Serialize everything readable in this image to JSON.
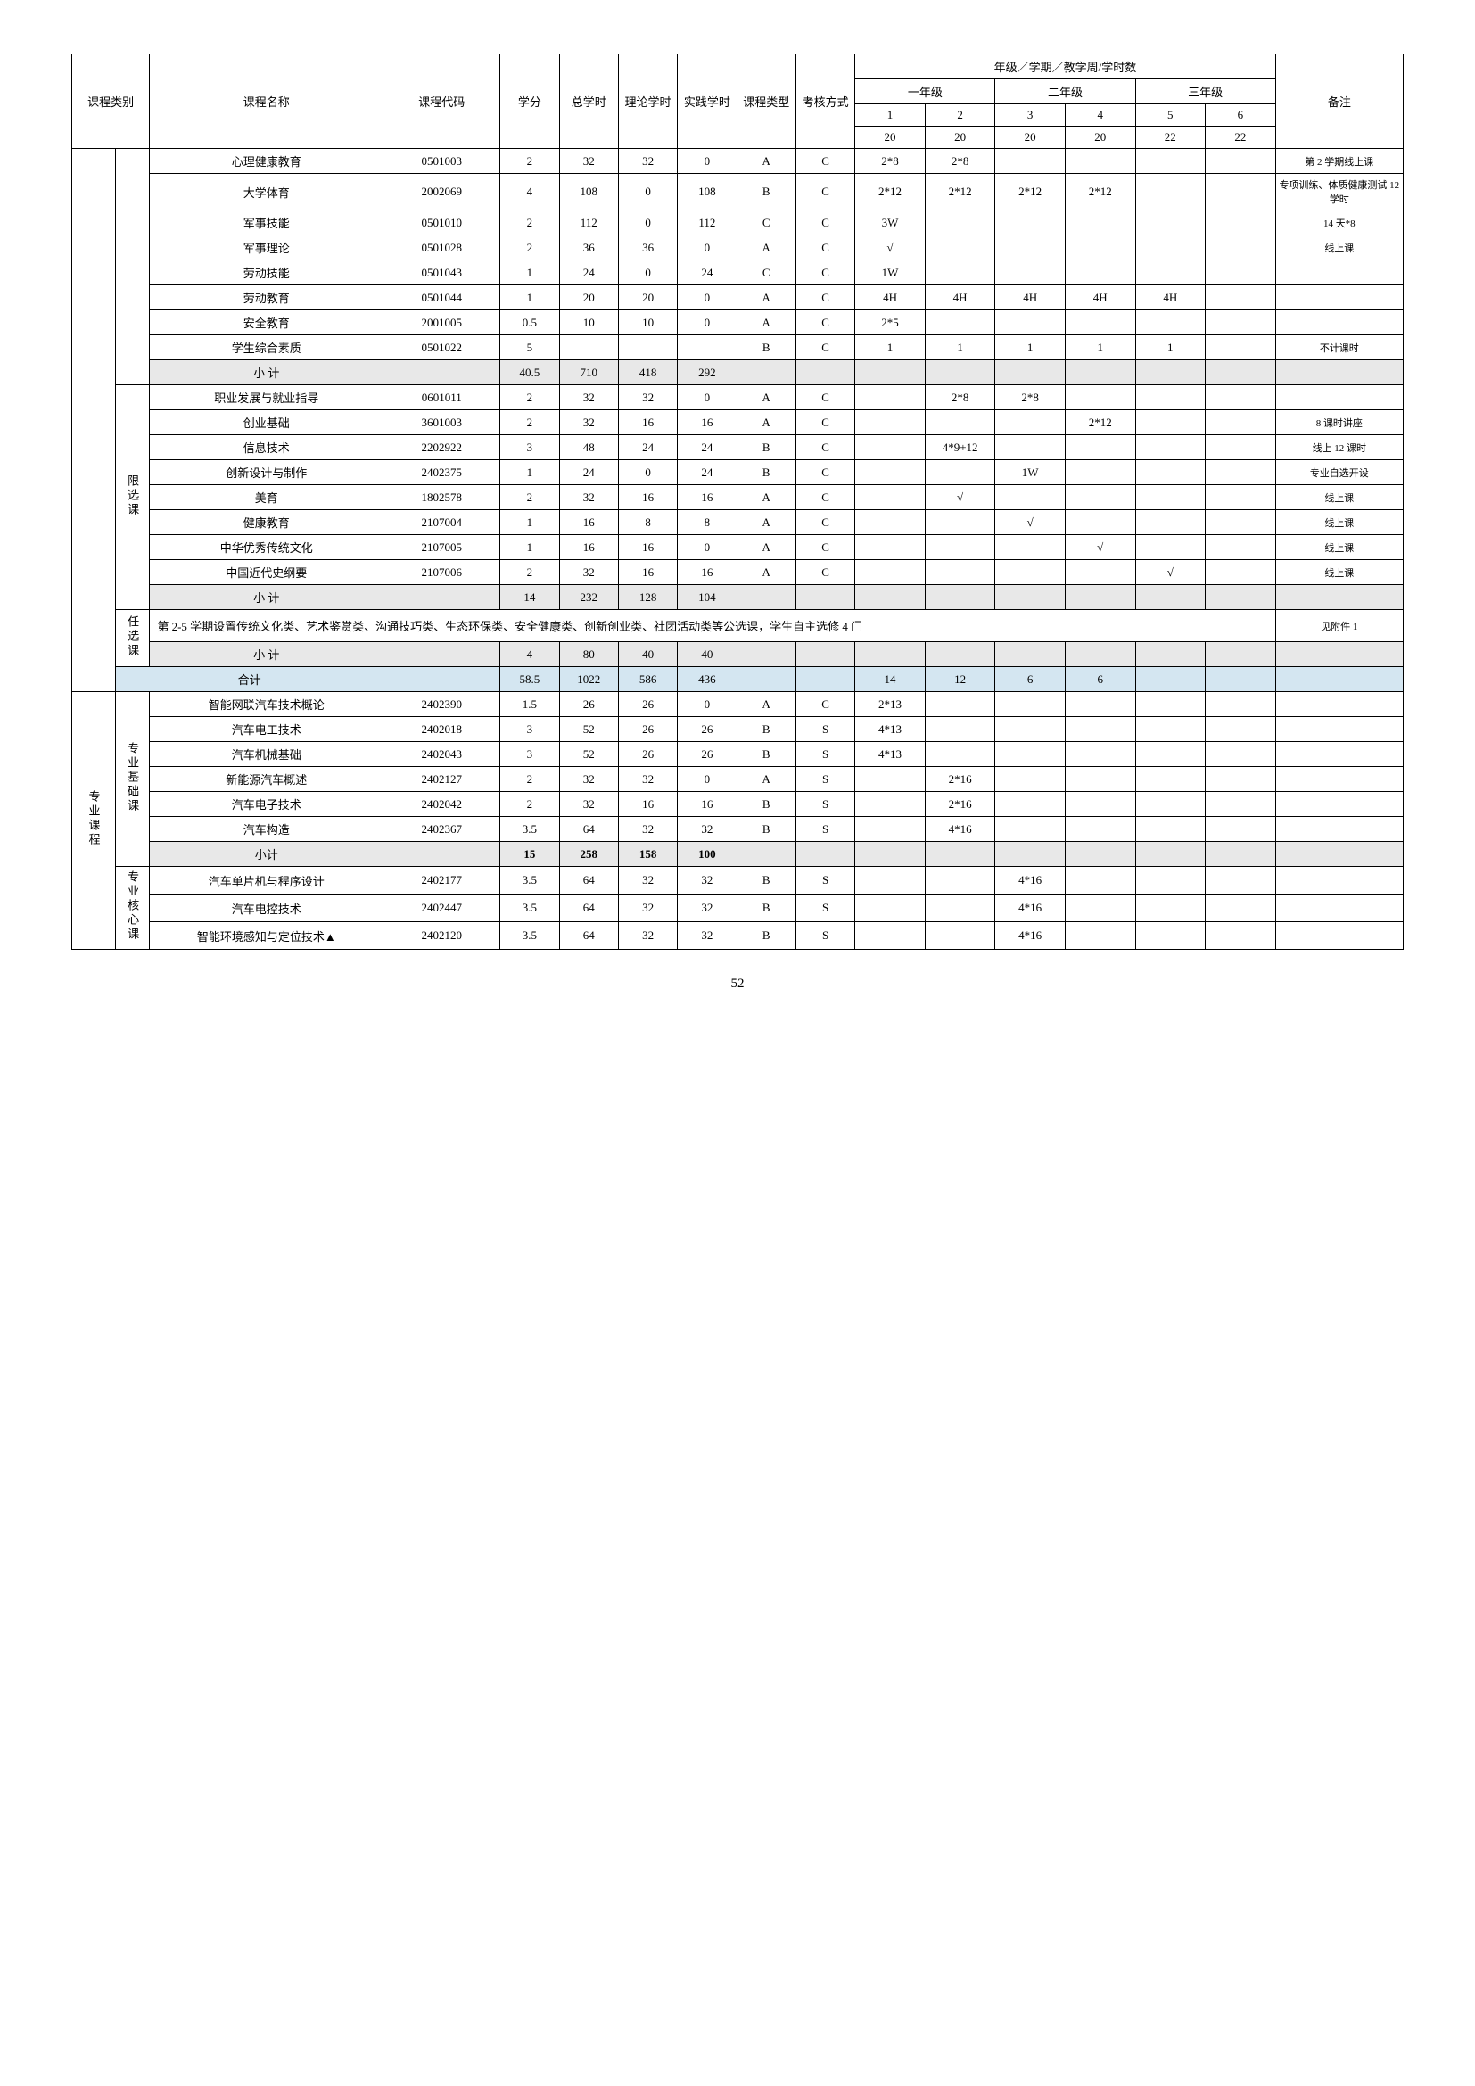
{
  "header": {
    "courseCategory": "课程类别",
    "courseName": "课程名称",
    "courseCode": "课程代码",
    "credits": "学分",
    "totalHours": "总学时",
    "theoryHours": "理论学时",
    "practiceHours": "实践学时",
    "courseType": "课程类型",
    "assessment": "考核方式",
    "yearSemWeek": "年级／学期／教学周/学时数",
    "year1": "一年级",
    "year2": "二年级",
    "year3": "三年级",
    "sem1": "1",
    "sem2": "2",
    "sem3": "3",
    "sem4": "4",
    "sem5": "5",
    "sem6": "6",
    "weeks1": "20",
    "weeks2": "20",
    "weeks3": "20",
    "weeks4": "20",
    "weeks5": "22",
    "weeks6": "22",
    "notes": "备注"
  },
  "sections": {
    "blank1": "",
    "limitedElective": "限选课",
    "optionalElective": "任选课",
    "majorCourse": "专业课程",
    "majorBasic": "专业基础课",
    "majorCore": "专业核心课"
  },
  "labels": {
    "subtotal": "小  计",
    "subtotalShort": "小计",
    "total": "合计"
  },
  "rows": {
    "r1": {
      "name": "心理健康教育",
      "code": "0501003",
      "credits": "2",
      "total": "32",
      "theory": "32",
      "practice": "0",
      "ctype": "A",
      "assess": "C",
      "s1": "2*8",
      "s2": "2*8",
      "s3": "",
      "s4": "",
      "s5": "",
      "s6": "",
      "note": "第 2 学期线上课"
    },
    "r2": {
      "name": "大学体育",
      "code": "2002069",
      "credits": "4",
      "total": "108",
      "theory": "0",
      "practice": "108",
      "ctype": "B",
      "assess": "C",
      "s1": "2*12",
      "s2": "2*12",
      "s3": "2*12",
      "s4": "2*12",
      "s5": "",
      "s6": "",
      "note": "专项训练、体质健康测试 12 学时"
    },
    "r3": {
      "name": "军事技能",
      "code": "0501010",
      "credits": "2",
      "total": "112",
      "theory": "0",
      "practice": "112",
      "ctype": "C",
      "assess": "C",
      "s1": "3W",
      "s2": "",
      "s3": "",
      "s4": "",
      "s5": "",
      "s6": "",
      "note": "14 天*8"
    },
    "r4": {
      "name": "军事理论",
      "code": "0501028",
      "credits": "2",
      "total": "36",
      "theory": "36",
      "practice": "0",
      "ctype": "A",
      "assess": "C",
      "s1": "√",
      "s2": "",
      "s3": "",
      "s4": "",
      "s5": "",
      "s6": "",
      "note": "线上课"
    },
    "r5": {
      "name": "劳动技能",
      "code": "0501043",
      "credits": "1",
      "total": "24",
      "theory": "0",
      "practice": "24",
      "ctype": "C",
      "assess": "C",
      "s1": "1W",
      "s2": "",
      "s3": "",
      "s4": "",
      "s5": "",
      "s6": "",
      "note": ""
    },
    "r6": {
      "name": "劳动教育",
      "code": "0501044",
      "credits": "1",
      "total": "20",
      "theory": "20",
      "practice": "0",
      "ctype": "A",
      "assess": "C",
      "s1": "4H",
      "s2": "4H",
      "s3": "4H",
      "s4": "4H",
      "s5": "4H",
      "s6": "",
      "note": ""
    },
    "r7": {
      "name": "安全教育",
      "code": "2001005",
      "credits": "0.5",
      "total": "10",
      "theory": "10",
      "practice": "0",
      "ctype": "A",
      "assess": "C",
      "s1": "2*5",
      "s2": "",
      "s3": "",
      "s4": "",
      "s5": "",
      "s6": "",
      "note": ""
    },
    "r8": {
      "name": "学生综合素质",
      "code": "0501022",
      "credits": "5",
      "total": "",
      "theory": "",
      "practice": "",
      "ctype": "B",
      "assess": "C",
      "s1": "1",
      "s2": "1",
      "s3": "1",
      "s4": "1",
      "s5": "1",
      "s6": "",
      "note": "不计课时"
    },
    "sub1": {
      "credits": "40.5",
      "total": "710",
      "theory": "418",
      "practice": "292"
    },
    "r9": {
      "name": "职业发展与就业指导",
      "code": "0601011",
      "credits": "2",
      "total": "32",
      "theory": "32",
      "practice": "0",
      "ctype": "A",
      "assess": "C",
      "s1": "",
      "s2": "2*8",
      "s3": "2*8",
      "s4": "",
      "s5": "",
      "s6": "",
      "note": ""
    },
    "r10": {
      "name": "创业基础",
      "code": "3601003",
      "credits": "2",
      "total": "32",
      "theory": "16",
      "practice": "16",
      "ctype": "A",
      "assess": "C",
      "s1": "",
      "s2": "",
      "s3": "",
      "s4": "2*12",
      "s5": "",
      "s6": "",
      "note": "8 课时讲座"
    },
    "r11": {
      "name": "信息技术",
      "code": "2202922",
      "credits": "3",
      "total": "48",
      "theory": "24",
      "practice": "24",
      "ctype": "B",
      "assess": "C",
      "s1": "",
      "s2": "4*9+12",
      "s3": "",
      "s4": "",
      "s5": "",
      "s6": "",
      "note": "线上 12 课时"
    },
    "r12": {
      "name": "创新设计与制作",
      "code": "2402375",
      "credits": "1",
      "total": "24",
      "theory": "0",
      "practice": "24",
      "ctype": "B",
      "assess": "C",
      "s1": "",
      "s2": "",
      "s3": "1W",
      "s4": "",
      "s5": "",
      "s6": "",
      "note": "专业自选开设"
    },
    "r13": {
      "name": "美育",
      "code": "1802578",
      "credits": "2",
      "total": "32",
      "theory": "16",
      "practice": "16",
      "ctype": "A",
      "assess": "C",
      "s1": "",
      "s2": "√",
      "s3": "",
      "s4": "",
      "s5": "",
      "s6": "",
      "note": "线上课"
    },
    "r14": {
      "name": "健康教育",
      "code": "2107004",
      "credits": "1",
      "total": "16",
      "theory": "8",
      "practice": "8",
      "ctype": "A",
      "assess": "C",
      "s1": "",
      "s2": "",
      "s3": "√",
      "s4": "",
      "s5": "",
      "s6": "",
      "note": "线上课"
    },
    "r15": {
      "name": "中华优秀传统文化",
      "code": "2107005",
      "credits": "1",
      "total": "16",
      "theory": "16",
      "practice": "0",
      "ctype": "A",
      "assess": "C",
      "s1": "",
      "s2": "",
      "s3": "",
      "s4": "√",
      "s5": "",
      "s6": "",
      "note": "线上课"
    },
    "r16": {
      "name": "中国近代史纲要",
      "code": "2107006",
      "credits": "2",
      "total": "32",
      "theory": "16",
      "practice": "16",
      "ctype": "A",
      "assess": "C",
      "s1": "",
      "s2": "",
      "s3": "",
      "s4": "",
      "s5": "√",
      "s6": "",
      "note": "线上课"
    },
    "sub2": {
      "credits": "14",
      "total": "232",
      "theory": "128",
      "practice": "104"
    },
    "optText": "第 2-5 学期设置传统文化类、艺术鉴赏类、沟通技巧类、生态环保类、安全健康类、创新创业类、社团活动类等公选课，学生自主选修 4 门",
    "optNote": "见附件 1",
    "sub3": {
      "credits": "4",
      "total": "80",
      "theory": "40",
      "practice": "40"
    },
    "grandTotal": {
      "credits": "58.5",
      "total": "1022",
      "theory": "586",
      "practice": "436",
      "s1": "14",
      "s2": "12",
      "s3": "6",
      "s4": "6"
    },
    "r17": {
      "name": "智能网联汽车技术概论",
      "code": "2402390",
      "credits": "1.5",
      "total": "26",
      "theory": "26",
      "practice": "0",
      "ctype": "A",
      "assess": "C",
      "s1": "2*13",
      "s2": "",
      "s3": "",
      "s4": "",
      "s5": "",
      "s6": "",
      "note": ""
    },
    "r18": {
      "name": "汽车电工技术",
      "code": "2402018",
      "credits": "3",
      "total": "52",
      "theory": "26",
      "practice": "26",
      "ctype": "B",
      "assess": "S",
      "s1": "4*13",
      "s2": "",
      "s3": "",
      "s4": "",
      "s5": "",
      "s6": "",
      "note": ""
    },
    "r19": {
      "name": "汽车机械基础",
      "code": "2402043",
      "credits": "3",
      "total": "52",
      "theory": "26",
      "practice": "26",
      "ctype": "B",
      "assess": "S",
      "s1": "4*13",
      "s2": "",
      "s3": "",
      "s4": "",
      "s5": "",
      "s6": "",
      "note": ""
    },
    "r20": {
      "name": "新能源汽车概述",
      "code": "2402127",
      "credits": "2",
      "total": "32",
      "theory": "32",
      "practice": "0",
      "ctype": "A",
      "assess": "S",
      "s1": "",
      "s2": "2*16",
      "s3": "",
      "s4": "",
      "s5": "",
      "s6": "",
      "note": ""
    },
    "r21": {
      "name": "汽车电子技术",
      "code": "2402042",
      "credits": "2",
      "total": "32",
      "theory": "16",
      "practice": "16",
      "ctype": "B",
      "assess": "S",
      "s1": "",
      "s2": "2*16",
      "s3": "",
      "s4": "",
      "s5": "",
      "s6": "",
      "note": ""
    },
    "r22": {
      "name": "汽车构造",
      "code": "2402367",
      "credits": "3.5",
      "total": "64",
      "theory": "32",
      "practice": "32",
      "ctype": "B",
      "assess": "S",
      "s1": "",
      "s2": "4*16",
      "s3": "",
      "s4": "",
      "s5": "",
      "s6": "",
      "note": ""
    },
    "sub4": {
      "credits": "15",
      "total": "258",
      "theory": "158",
      "practice": "100"
    },
    "r23": {
      "name": "汽车单片机与程序设计",
      "code": "2402177",
      "credits": "3.5",
      "total": "64",
      "theory": "32",
      "practice": "32",
      "ctype": "B",
      "assess": "S",
      "s1": "",
      "s2": "",
      "s3": "4*16",
      "s4": "",
      "s5": "",
      "s6": "",
      "note": ""
    },
    "r24": {
      "name": "汽车电控技术",
      "code": "2402447",
      "credits": "3.5",
      "total": "64",
      "theory": "32",
      "practice": "32",
      "ctype": "B",
      "assess": "S",
      "s1": "",
      "s2": "",
      "s3": "4*16",
      "s4": "",
      "s5": "",
      "s6": "",
      "note": ""
    },
    "r25": {
      "name": "智能环境感知与定位技术▲",
      "code": "2402120",
      "credits": "3.5",
      "total": "64",
      "theory": "32",
      "practice": "32",
      "ctype": "B",
      "assess": "S",
      "s1": "",
      "s2": "",
      "s3": "4*16",
      "s4": "",
      "s5": "",
      "s6": "",
      "note": ""
    }
  },
  "pageNumber": "52"
}
